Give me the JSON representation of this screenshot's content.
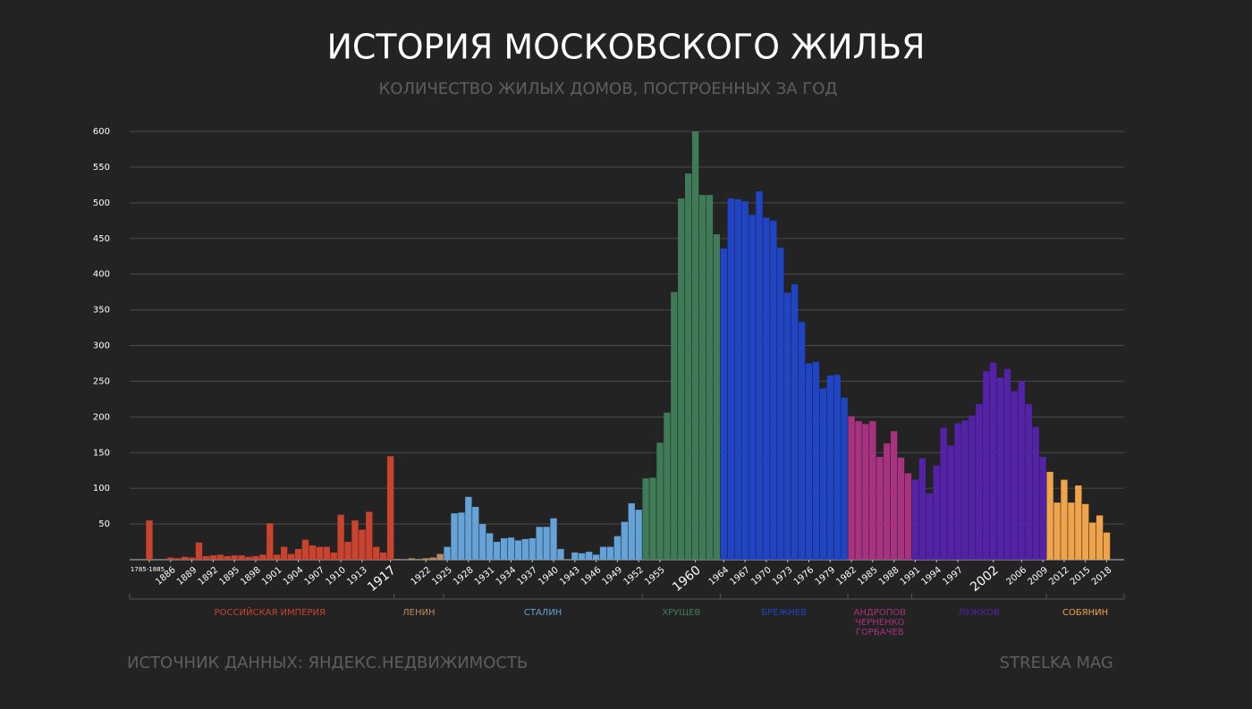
{
  "chart_data": {
    "type": "bar",
    "title": "ИСТОРИЯ МОСКОВСКОГО ЖИЛЬЯ",
    "subtitle": "КОЛИЧЕСТВО ЖИЛЫХ ДОМОВ, ПОСТРОЕННЫХ ЗА ГОД",
    "source": "ИСТОЧНИК ДАННЫХ: ЯНДЕКС.НЕДВИЖИМОСТЬ",
    "brand": "STRELKA MAG",
    "ylim": [
      0,
      600
    ],
    "yticks": [
      50,
      100,
      150,
      200,
      250,
      300,
      350,
      400,
      450,
      500,
      550,
      600
    ],
    "grid": true,
    "emphasized_ticks": [
      "1917",
      "1960",
      "2002"
    ],
    "series": [
      {
        "name": "РОССИЙСКАЯ ИМПЕРИЯ",
        "color": "#c9432f",
        "categories": [
          "1785-1885",
          null,
          null,
          "1886",
          null,
          null,
          "1889",
          null,
          null,
          "1892",
          null,
          null,
          "1895",
          null,
          null,
          "1898",
          null,
          null,
          "1901",
          null,
          null,
          "1904",
          null,
          null,
          "1907",
          null,
          null,
          "1910",
          null,
          null,
          "1913",
          null,
          null,
          null,
          "1917"
        ],
        "values": [
          55,
          null,
          null,
          3,
          2,
          4,
          3,
          24,
          5,
          6,
          7,
          5,
          6,
          6,
          4,
          5,
          7,
          51,
          7,
          18,
          8,
          15,
          28,
          20,
          18,
          18,
          10,
          63,
          25,
          55,
          42,
          67,
          18,
          10,
          145
        ]
      },
      {
        "name": "ЛЕНИН",
        "color": "#b98d62",
        "categories": [
          null,
          null,
          null,
          null,
          "1922",
          null,
          null
        ],
        "values": [
          1,
          0,
          2,
          1,
          2,
          3,
          8
        ]
      },
      {
        "name": "СТАЛИН",
        "color": "#64a2d8",
        "categories": [
          "1925",
          null,
          null,
          "1928",
          null,
          null,
          "1931",
          null,
          null,
          "1934",
          null,
          null,
          "1937",
          null,
          null,
          "1940",
          null,
          null,
          "1943",
          null,
          null,
          "1946",
          null,
          null,
          "1949",
          null,
          null,
          "1952"
        ],
        "values": [
          18,
          65,
          66,
          88,
          74,
          50,
          37,
          25,
          30,
          31,
          27,
          29,
          30,
          46,
          46,
          58,
          15,
          0,
          10,
          9,
          11,
          7,
          18,
          18,
          33,
          53,
          79,
          70
        ]
      },
      {
        "name": "ХРУЩЕВ",
        "color": "#3e7b56",
        "categories": [
          null,
          null,
          "1955",
          null,
          null,
          null,
          null,
          "1960",
          null,
          null,
          null
        ],
        "values": [
          114,
          115,
          164,
          206,
          375,
          506,
          541,
          600,
          511,
          511,
          456
        ]
      },
      {
        "name": "БРЕЖНЕВ",
        "color": "#1f45c6",
        "categories": [
          "1964",
          null,
          null,
          "1967",
          null,
          null,
          "1970",
          null,
          null,
          "1973",
          null,
          null,
          "1976",
          null,
          null,
          "1979",
          null,
          null
        ],
        "values": [
          436,
          506,
          505,
          502,
          483,
          516,
          479,
          475,
          437,
          374,
          386,
          333,
          275,
          277,
          240,
          258,
          259,
          227
        ]
      },
      {
        "name": "АНДРОПОВ\nЧЕРНЕНКО\nГОРБАЧЕВ",
        "color": "#a8327f",
        "categories": [
          "1982",
          null,
          null,
          "1985",
          null,
          null,
          "1988",
          null,
          null
        ],
        "values": [
          201,
          194,
          190,
          194,
          144,
          163,
          180,
          143,
          121
        ]
      },
      {
        "name": "ЛУЖКОВ",
        "color": "#5421a9",
        "categories": [
          "1991",
          null,
          null,
          "1994",
          null,
          null,
          "1997",
          null,
          null,
          null,
          null,
          "2002",
          null,
          null,
          null,
          "2006",
          null,
          null,
          "2009"
        ],
        "values": [
          112,
          142,
          93,
          132,
          185,
          160,
          191,
          195,
          202,
          218,
          264,
          276,
          255,
          267,
          236,
          250,
          218,
          186,
          144
        ]
      },
      {
        "name": "СОБЯНИН",
        "color": "#efa44b",
        "categories": [
          null,
          null,
          "2012",
          null,
          null,
          "2015",
          null,
          null,
          "2018"
        ],
        "values": [
          123,
          80,
          112,
          80,
          104,
          78,
          52,
          62,
          38
        ]
      }
    ]
  }
}
